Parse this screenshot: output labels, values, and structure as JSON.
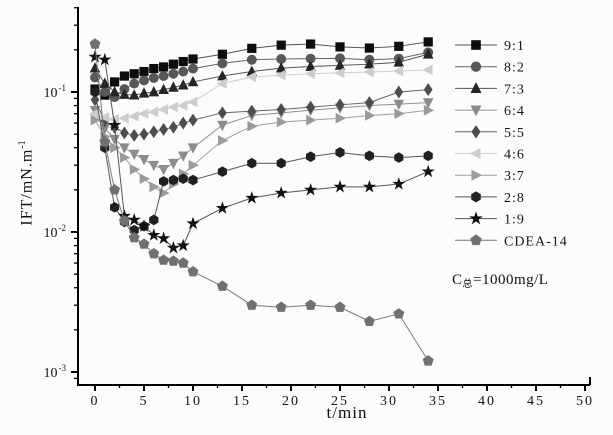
{
  "figure": {
    "background": "#fcfcfb",
    "xlabel": "t/min",
    "ylabel_base": "IFT/mN.m",
    "ylabel_exp": "-1",
    "annotation": {
      "prefix": "C",
      "sub": "总",
      "suffix": "=1000mg/L"
    }
  },
  "chart_data": {
    "type": "line",
    "title": "",
    "xlabel": "t/min",
    "ylabel": "IFT/mN.m-1",
    "grid": false,
    "legend_position": "right",
    "x_axis": {
      "ticks": [
        0,
        5,
        10,
        15,
        20,
        25,
        30,
        35,
        40,
        45,
        50
      ],
      "minor_step": 2.5,
      "lim": [
        -1.75,
        50.5
      ]
    },
    "y_axis": {
      "scale": "log",
      "tick_base": "10",
      "tick_exponents": [
        -1,
        -2,
        -3
      ],
      "lim": [
        0.0008,
        0.4
      ]
    },
    "x": [
      0,
      1,
      2,
      3,
      4,
      5,
      6,
      7,
      8,
      9,
      10,
      13,
      16,
      19,
      22,
      25,
      28,
      31,
      34
    ],
    "series": [
      {
        "name": "9:1",
        "marker": "square",
        "color": "#0d0d0d",
        "line_color": "#555555",
        "values": [
          0.105,
          0.095,
          0.118,
          0.13,
          0.135,
          0.14,
          0.147,
          0.151,
          0.158,
          0.165,
          0.172,
          0.186,
          0.205,
          0.216,
          0.22,
          0.21,
          0.206,
          0.212,
          0.228
        ]
      },
      {
        "name": "8:2",
        "marker": "circle",
        "color": "#585858",
        "line_color": "#666666",
        "values": [
          0.127,
          0.1,
          0.092,
          0.105,
          0.115,
          0.121,
          0.126,
          0.13,
          0.135,
          0.14,
          0.147,
          0.16,
          0.17,
          0.172,
          0.173,
          0.174,
          0.17,
          0.173,
          0.192
        ]
      },
      {
        "name": "7:3",
        "marker": "triangle-up",
        "color": "#262626",
        "line_color": "#555555",
        "values": [
          0.148,
          0.115,
          0.1,
          0.096,
          0.095,
          0.098,
          0.1,
          0.104,
          0.108,
          0.112,
          0.118,
          0.13,
          0.14,
          0.148,
          0.152,
          0.155,
          0.158,
          0.163,
          0.186
        ]
      },
      {
        "name": "6:4",
        "marker": "triangle-down",
        "color": "#8c8c8c",
        "line_color": "#8f8f8f",
        "values": [
          0.074,
          0.055,
          0.046,
          0.04,
          0.036,
          0.033,
          0.03,
          0.028,
          0.031,
          0.035,
          0.04,
          0.058,
          0.068,
          0.071,
          0.074,
          0.077,
          0.08,
          0.082,
          0.084
        ]
      },
      {
        "name": "5:5",
        "marker": "diamond",
        "color": "#4d4d4d",
        "line_color": "#666666",
        "values": [
          0.088,
          0.062,
          0.056,
          0.051,
          0.049,
          0.05,
          0.052,
          0.054,
          0.056,
          0.06,
          0.063,
          0.071,
          0.073,
          0.075,
          0.078,
          0.081,
          0.084,
          0.1,
          0.104
        ]
      },
      {
        "name": "4:6",
        "marker": "triangle-left",
        "color": "#cdcdcd",
        "line_color": "#cfcfcf",
        "values": [
          0.07,
          0.066,
          0.064,
          0.065,
          0.067,
          0.07,
          0.072,
          0.075,
          0.078,
          0.08,
          0.085,
          0.115,
          0.128,
          0.132,
          0.135,
          0.137,
          0.139,
          0.141,
          0.144
        ]
      },
      {
        "name": "3:7",
        "marker": "triangle-right",
        "color": "#9a9a9a",
        "line_color": "#a0a0a0",
        "values": [
          0.063,
          0.048,
          0.04,
          0.034,
          0.028,
          0.024,
          0.021,
          0.019,
          0.022,
          0.026,
          0.03,
          0.045,
          0.057,
          0.061,
          0.063,
          0.065,
          0.068,
          0.07,
          0.074
        ]
      },
      {
        "name": "2:8",
        "marker": "hexagon",
        "color": "#202020",
        "line_color": "#555555",
        "values": [
          0.1,
          0.04,
          0.015,
          0.0118,
          0.0103,
          0.011,
          0.0122,
          0.023,
          0.0235,
          0.024,
          0.0235,
          0.027,
          0.031,
          0.031,
          0.0345,
          0.037,
          0.035,
          0.034,
          0.035
        ]
      },
      {
        "name": "1:9",
        "marker": "star",
        "color": "#111111",
        "line_color": "#555555",
        "values": [
          0.178,
          0.17,
          0.058,
          0.013,
          0.0122,
          0.011,
          0.0095,
          0.009,
          0.0077,
          0.008,
          0.0115,
          0.0148,
          0.0175,
          0.019,
          0.02,
          0.021,
          0.021,
          0.022,
          0.027
        ]
      },
      {
        "name": "CDEA-14",
        "marker": "pentagon",
        "color": "#707070",
        "line_color": "#7a7a7a",
        "values": [
          0.22,
          0.044,
          0.02,
          0.012,
          0.0091,
          0.0082,
          0.007,
          0.0063,
          0.0062,
          0.006,
          0.0052,
          0.0041,
          0.003,
          0.0029,
          0.003,
          0.0029,
          0.0023,
          0.0026,
          0.0012
        ]
      }
    ]
  }
}
